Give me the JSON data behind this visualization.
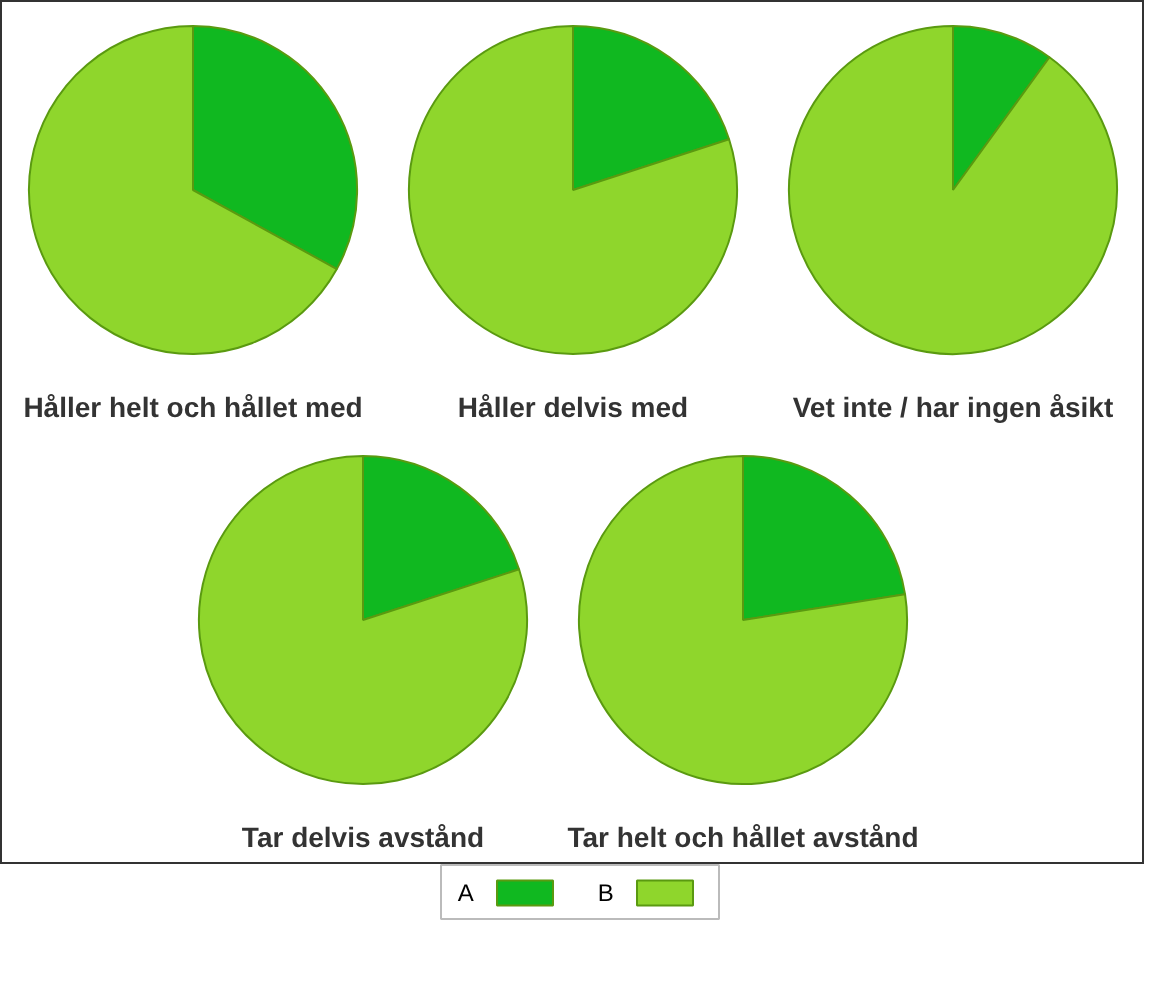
{
  "chart_data": [
    {
      "type": "pie",
      "title": "Håller helt och hållet med",
      "categories": [
        "A",
        "B"
      ],
      "values": [
        33,
        67
      ],
      "colors": [
        "#10b820",
        "#8fd62c"
      ],
      "legend": "bottom"
    },
    {
      "type": "pie",
      "title": "Håller delvis med",
      "categories": [
        null,
        null
      ],
      "values": [
        20,
        80
      ],
      "colors": [
        "#10b820",
        "#8fd62c"
      ]
    },
    {
      "type": "pie",
      "title": "Vet inte / har ingen åsikt",
      "categories": [
        null,
        null
      ],
      "values": [
        10,
        90
      ],
      "colors": [
        "#10b820",
        "#8fd62c"
      ]
    },
    {
      "type": "pie",
      "title": "Tar delvis avstånd",
      "categories": [
        null,
        null
      ],
      "values": [
        20,
        80
      ],
      "colors": [
        "#10b820",
        "#8fd62c"
      ]
    },
    {
      "type": "pie",
      "title": "Tar helt och hållet avstånd",
      "categories": [
        null,
        null
      ],
      "values": [
        22.5,
        77.5
      ],
      "colors": [
        "#10b820",
        "#8fd62c"
      ]
    }
  ]
}
